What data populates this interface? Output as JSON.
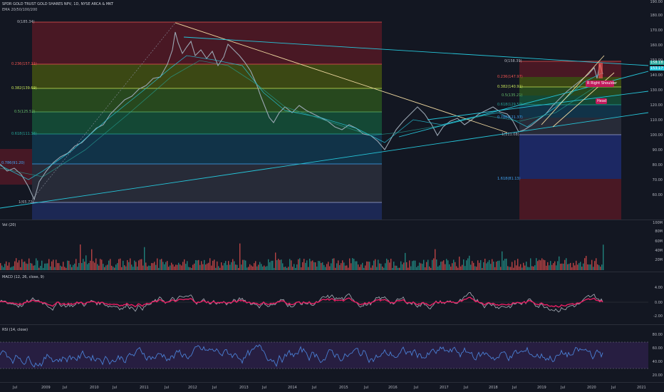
{
  "header": {
    "symbol_title": "SPDR GOLD TRUST GOLD SHARES NPV, 1D, NYSE ARCA & MKT",
    "indicator": "EMA 20/50/100/200"
  },
  "price_axis": [
    "190.00",
    "180.00",
    "170.00",
    "160.00",
    "150.00",
    "140.00",
    "130.00",
    "120.00",
    "110.00",
    "100.00",
    "90.00",
    "80.00",
    "70.00",
    "60.00"
  ],
  "price_boxes": [
    "158.18",
    "153.17"
  ],
  "fib_left": [
    "0(185.34)",
    "0.236(157.21)",
    "0.382(139.69)",
    "0.5(125.52)",
    "0.618(111.36)",
    "1(65.72)"
  ],
  "fib_left_extra": "0.786(91.20)",
  "fib_right": [
    "0(158.39)",
    "0.236(147.97)",
    "0.382(140.91)",
    "0.5(135.21)",
    "0.618(129.50)",
    "0.786(121.37)",
    "1(111.08)",
    "1.618(81.13)"
  ],
  "annotations": {
    "right_shoulder": "R Right Shoulder",
    "head": "Head"
  },
  "volume": {
    "title": "Vol (20)",
    "ticks": [
      "100M",
      "80M",
      "60M",
      "40M",
      "20M"
    ]
  },
  "macd": {
    "title": "MACD (12, 26, close, 9)",
    "ticks": [
      "4.00",
      "2.00",
      "0.00",
      "-2.00"
    ]
  },
  "rsi": {
    "title": "RSI (14, close)",
    "ticks": [
      "80.00",
      "60.00",
      "40.00",
      "20.00"
    ]
  },
  "time_axis": [
    "Jul",
    "2009",
    "Jul",
    "2010",
    "Jul",
    "2011",
    "Jul",
    "2012",
    "Jul",
    "2013",
    "Jul",
    "2014",
    "Jul",
    "2015",
    "Jul",
    "2016",
    "Jul",
    "2017",
    "Jul",
    "2018",
    "Jul",
    "2019",
    "Jul",
    "2020",
    "Jul",
    "2021"
  ],
  "colors": {
    "bg": "#131722",
    "up": "#26a69a",
    "down": "#ef5350",
    "ema_fast": "#26c6da",
    "line_gold": "#f0d9a0"
  }
}
